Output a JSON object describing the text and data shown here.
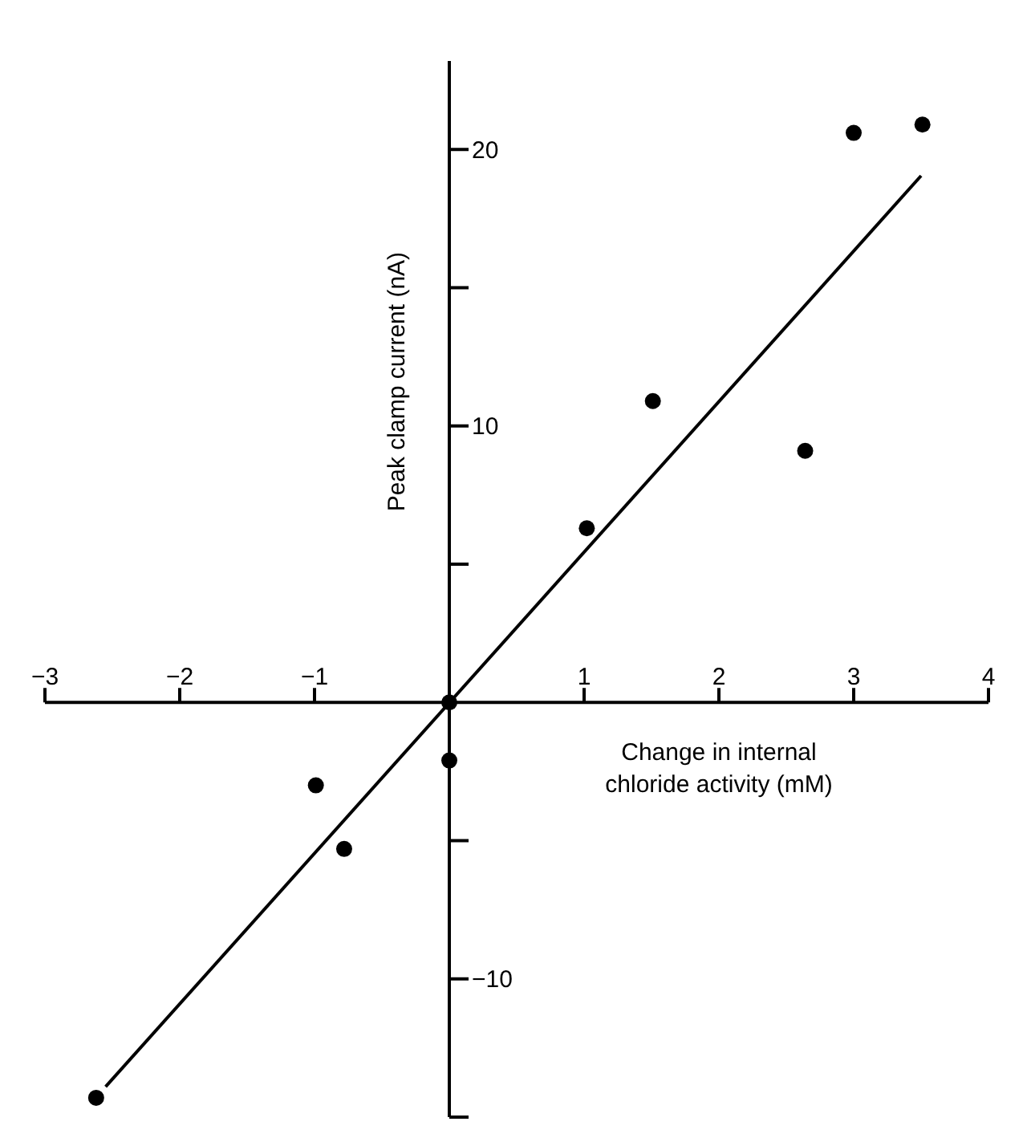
{
  "chart_data": {
    "type": "scatter",
    "xlabel": "Change in internal chloride activity (mM)",
    "ylabel": "Peak clamp current (nA)",
    "xlim": [
      -3,
      4
    ],
    "ylim": [
      -15,
      23.2
    ],
    "xticks": [
      -3,
      -2,
      -1,
      1,
      2,
      3,
      4
    ],
    "yticks": [
      {
        "value": -15,
        "label": null
      },
      -10,
      {
        "value": -5,
        "label": null
      },
      {
        "value": 5,
        "label": null
      },
      10,
      {
        "value": 15,
        "label": null
      },
      20
    ],
    "marker": "circle",
    "series": [
      {
        "type": "scatter",
        "color": "#000000",
        "x": [
          -2.62,
          -0.99,
          -0.78,
          0,
          0,
          1.02,
          1.51,
          2.64,
          3.0,
          3.51
        ],
        "values": [
          -14.3,
          -3.0,
          -5.3,
          0,
          -2.1,
          6.3,
          10.9,
          9.1,
          20.6,
          20.9
        ]
      },
      {
        "type": "line",
        "color": "#000000",
        "marker": "none",
        "x": [
          -2.55,
          3.5
        ],
        "values": [
          -13.9,
          19.05
        ]
      }
    ]
  }
}
